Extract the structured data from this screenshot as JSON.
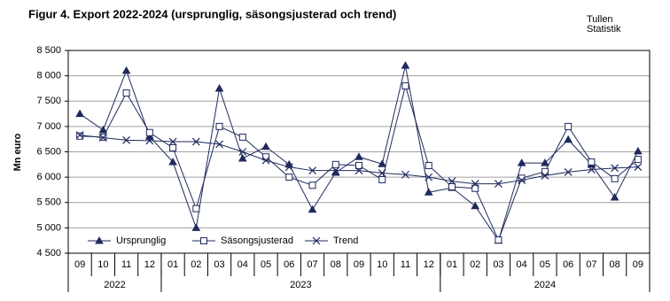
{
  "chart_data": {
    "type": "line",
    "title": "Figur 4. Export 2022-2024  (ursprunglig, säsongsjusterad  och trend)",
    "source": [
      "Tullen",
      "Statistik"
    ],
    "y_label": "Mn euro",
    "categories": [
      "09",
      "10",
      "11",
      "12",
      "01",
      "02",
      "03",
      "04",
      "05",
      "06",
      "07",
      "08",
      "09",
      "10",
      "11",
      "12",
      "01",
      "02",
      "03",
      "04",
      "05",
      "06",
      "07",
      "08",
      "09"
    ],
    "year_labels": [
      "2022",
      "2023",
      "2024"
    ],
    "ylim": [
      4500,
      8500
    ],
    "yticks": [
      {
        "value": 4500,
        "label": "4 500"
      },
      {
        "value": 5000,
        "label": "5 000"
      },
      {
        "value": 5500,
        "label": "5 500"
      },
      {
        "value": 6000,
        "label": "6 000"
      },
      {
        "value": 6500,
        "label": "6 500"
      },
      {
        "value": 7000,
        "label": "7 000"
      },
      {
        "value": 7500,
        "label": "7 500"
      },
      {
        "value": 8000,
        "label": "8 000"
      },
      {
        "value": 8500,
        "label": "8 500"
      }
    ],
    "grid": true,
    "legend": "bottom-left",
    "series": [
      {
        "name": "Ursprunglig",
        "color": "#1f2a5c",
        "marker": "triangle",
        "values": [
          7250,
          6930,
          8100,
          6800,
          6300,
          5000,
          7750,
          6370,
          6600,
          6250,
          5360,
          6090,
          6400,
          6260,
          8200,
          5700,
          5790,
          5430,
          4750,
          6280,
          6280,
          6740,
          6250,
          5600,
          6510
        ]
      },
      {
        "name": "Säsongsjusterad",
        "color": "#1f2a5c",
        "marker": "square",
        "values": [
          6810,
          6790,
          7660,
          6880,
          6580,
          5380,
          7000,
          6790,
          6400,
          6000,
          5840,
          6250,
          6230,
          5950,
          7800,
          6230,
          5810,
          5780,
          4760,
          5980,
          6110,
          7000,
          6300,
          5970,
          6350
        ]
      },
      {
        "name": "Trend",
        "color": "#1f2a5c",
        "marker": "cross",
        "values": [
          6830,
          6780,
          6730,
          6720,
          6700,
          6700,
          6650,
          6500,
          6330,
          6200,
          6130,
          6130,
          6130,
          6080,
          6050,
          6000,
          5920,
          5870,
          5870,
          5940,
          6030,
          6100,
          6150,
          6180,
          6200
        ]
      }
    ]
  }
}
